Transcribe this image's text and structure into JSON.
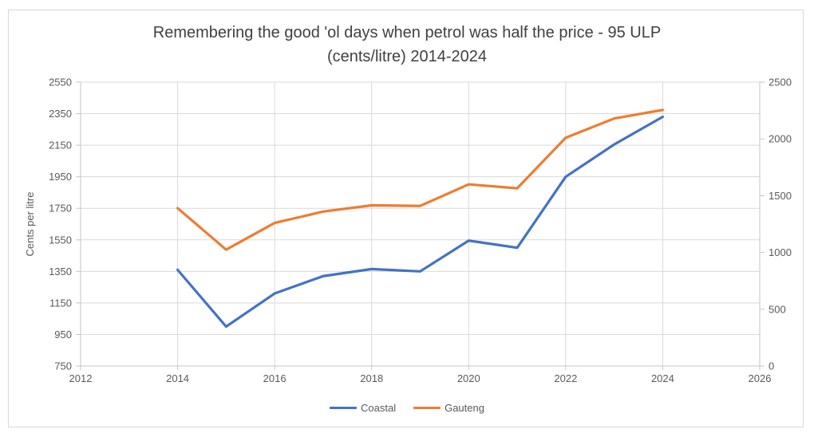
{
  "chart": {
    "title_line1": "Remembering the good 'ol days when petrol was half the price - 95 ULP",
    "title_line2": "(cents/litre) 2014-2024"
  },
  "chart_data": {
    "type": "line",
    "title": "Remembering the good 'ol days when petrol was half the price - 95 ULP (cents/litre) 2014-2024",
    "x": [
      2014,
      2015,
      2016,
      2017,
      2018,
      2019,
      2020,
      2021,
      2022,
      2023,
      2024
    ],
    "series": [
      {
        "name": "Coastal",
        "color": "#4472C4",
        "axis": "left",
        "values": [
          1360,
          1000,
          1210,
          1320,
          1365,
          1350,
          1545,
          1500,
          1950,
          2155,
          2330
        ]
      },
      {
        "name": "Gauteng",
        "color": "#ED7D31",
        "axis": "right",
        "values": [
          1390,
          1025,
          1260,
          1360,
          1415,
          1410,
          1600,
          1565,
          2010,
          2180,
          2255
        ]
      }
    ],
    "axes": {
      "x": {
        "min": 2012,
        "max": 2026,
        "step": 2,
        "ticks": [
          2012,
          2014,
          2016,
          2018,
          2020,
          2022,
          2024,
          2026
        ]
      },
      "y_left": {
        "title": "Cents per litre",
        "min": 750,
        "max": 2550,
        "step": 200,
        "ticks": [
          750,
          950,
          1150,
          1350,
          1550,
          1750,
          1950,
          2150,
          2350,
          2550
        ]
      },
      "y_right": {
        "min": 0,
        "max": 2500,
        "step": 500,
        "ticks": [
          0,
          500,
          1000,
          1500,
          2000,
          2500
        ]
      }
    },
    "legend": {
      "position": "bottom",
      "entries": [
        {
          "label": "Coastal",
          "color": "#4472C4"
        },
        {
          "label": "Gauteng",
          "color": "#ED7D31"
        }
      ]
    },
    "grid": true,
    "colors": {
      "gridline": "#D9D9D9",
      "axis_line": "#C6C6C6",
      "tick_text": "#595959",
      "title_text": "#404040"
    }
  }
}
